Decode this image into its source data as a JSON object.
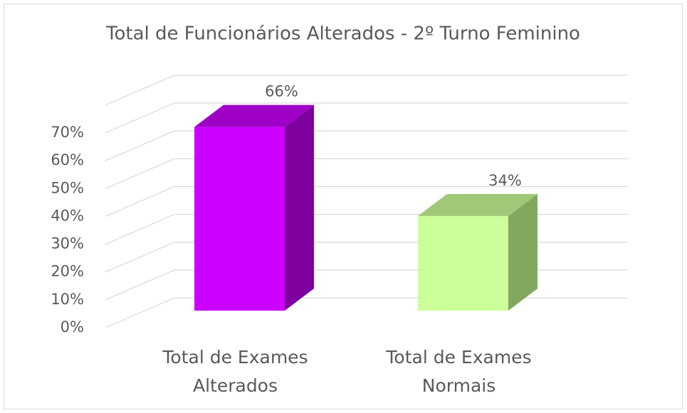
{
  "chart_data": {
    "type": "bar3d",
    "title": "Total de Funcionários Alterados - 2º Turno Feminino",
    "categories": [
      "Total de Exames Alterados",
      "Total de Exames Normais"
    ],
    "values": [
      66,
      34
    ],
    "value_labels": [
      "66%",
      "34%"
    ],
    "colors": [
      "#cc00ff",
      "#ccff99"
    ],
    "ylim": [
      0,
      80
    ],
    "yticks": [
      {
        "value": 0,
        "label": "0%"
      },
      {
        "value": 10,
        "label": "10%"
      },
      {
        "value": 20,
        "label": "20%"
      },
      {
        "value": 30,
        "label": "30%"
      },
      {
        "value": 40,
        "label": "40%"
      },
      {
        "value": 50,
        "label": "50%"
      },
      {
        "value": 60,
        "label": "60%"
      },
      {
        "value": 70,
        "label": "70%"
      }
    ],
    "grid": true
  }
}
